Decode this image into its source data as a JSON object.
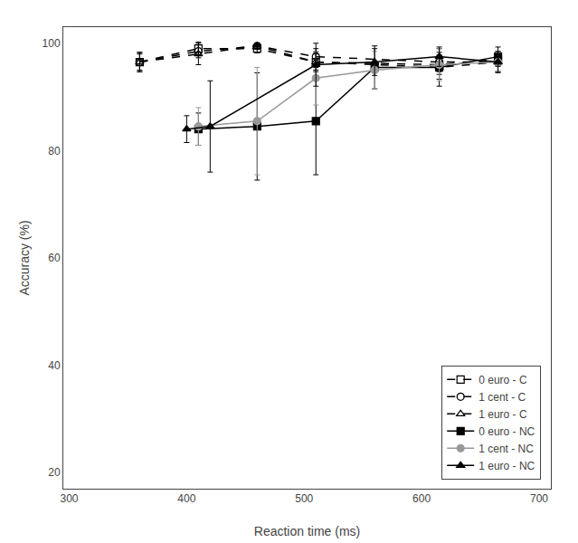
{
  "chart_data": {
    "type": "line",
    "xlabel": "Reaction time (ms)",
    "ylabel": "Accuracy (%)",
    "xlim": [
      295,
      710
    ],
    "ylim": [
      17,
      103
    ],
    "xticks": [
      300,
      400,
      500,
      600,
      700
    ],
    "yticks": [
      20,
      40,
      60,
      80,
      100
    ],
    "grid": false,
    "legend": "lower right",
    "series": [
      {
        "name": "0 euro - C",
        "color": "black",
        "line_style": "dashed",
        "marker": "square-open",
        "x": [
          360,
          410,
          460,
          510,
          615,
          665
        ],
        "values": [
          96.5,
          99.0,
          99.0,
          96.5,
          96.0,
          97.0
        ],
        "error_minus": [
          1.5,
          1.2,
          0.8,
          1.5,
          1.8,
          1.2
        ],
        "error_plus": [
          1.5,
          1.2,
          0.8,
          1.5,
          1.8,
          1.2
        ]
      },
      {
        "name": "1 cent - C",
        "color": "black",
        "line_style": "dashed",
        "marker": "circle-open",
        "x": [
          360,
          410,
          460,
          510,
          615,
          665
        ],
        "values": [
          96.5,
          98.5,
          99.5,
          97.5,
          96.5,
          96.5
        ],
        "error_minus": [
          1.8,
          1.2,
          0.5,
          1.5,
          1.8,
          1.8
        ],
        "error_plus": [
          1.8,
          1.2,
          0.5,
          1.5,
          1.8,
          1.8
        ]
      },
      {
        "name": "1 euro - C",
        "color": "black",
        "line_style": "dashed",
        "marker": "triangle-up-open",
        "x": [
          360,
          410,
          460,
          510,
          615,
          665
        ],
        "values": [
          96.5,
          98.0,
          99.5,
          96.5,
          95.5,
          96.5
        ],
        "error_minus": [
          1.8,
          2.0,
          0.5,
          1.8,
          2.2,
          1.8
        ],
        "error_plus": [
          1.8,
          2.0,
          0.5,
          1.8,
          2.2,
          1.8
        ]
      },
      {
        "name": "0 euro - NC",
        "color": "black",
        "line_style": "solid",
        "marker": "square",
        "x": [
          410,
          460,
          510,
          560,
          615,
          665
        ],
        "values": [
          84.0,
          84.5,
          85.5,
          95.5,
          95.5,
          97.5
        ],
        "error_minus": [
          3.0,
          10.0,
          10.0,
          4.0,
          3.5,
          1.8
        ],
        "error_plus": [
          3.0,
          10.0,
          10.0,
          4.0,
          3.5,
          1.8
        ]
      },
      {
        "name": "1 cent - NC",
        "color": "#999999",
        "line_style": "solid",
        "marker": "circle",
        "x": [
          410,
          460,
          510,
          560,
          615,
          665
        ],
        "values": [
          84.5,
          85.5,
          93.5,
          95.0,
          96.0,
          96.5
        ],
        "error_minus": [
          3.5,
          10.0,
          5.0,
          3.5,
          3.0,
          1.8
        ],
        "error_plus": [
          3.5,
          10.0,
          5.0,
          3.5,
          3.0,
          1.8
        ]
      },
      {
        "name": "1 euro - NC",
        "color": "black",
        "line_style": "solid",
        "marker": "triangle-up",
        "x": [
          400,
          420,
          510,
          560,
          615,
          665
        ],
        "values": [
          84.0,
          84.5,
          96.0,
          96.5,
          97.5,
          96.5
        ],
        "error_minus": [
          2.5,
          8.5,
          4.0,
          2.5,
          1.8,
          2.0
        ],
        "error_plus": [
          2.5,
          8.5,
          4.0,
          2.5,
          1.8,
          2.0
        ]
      }
    ]
  }
}
